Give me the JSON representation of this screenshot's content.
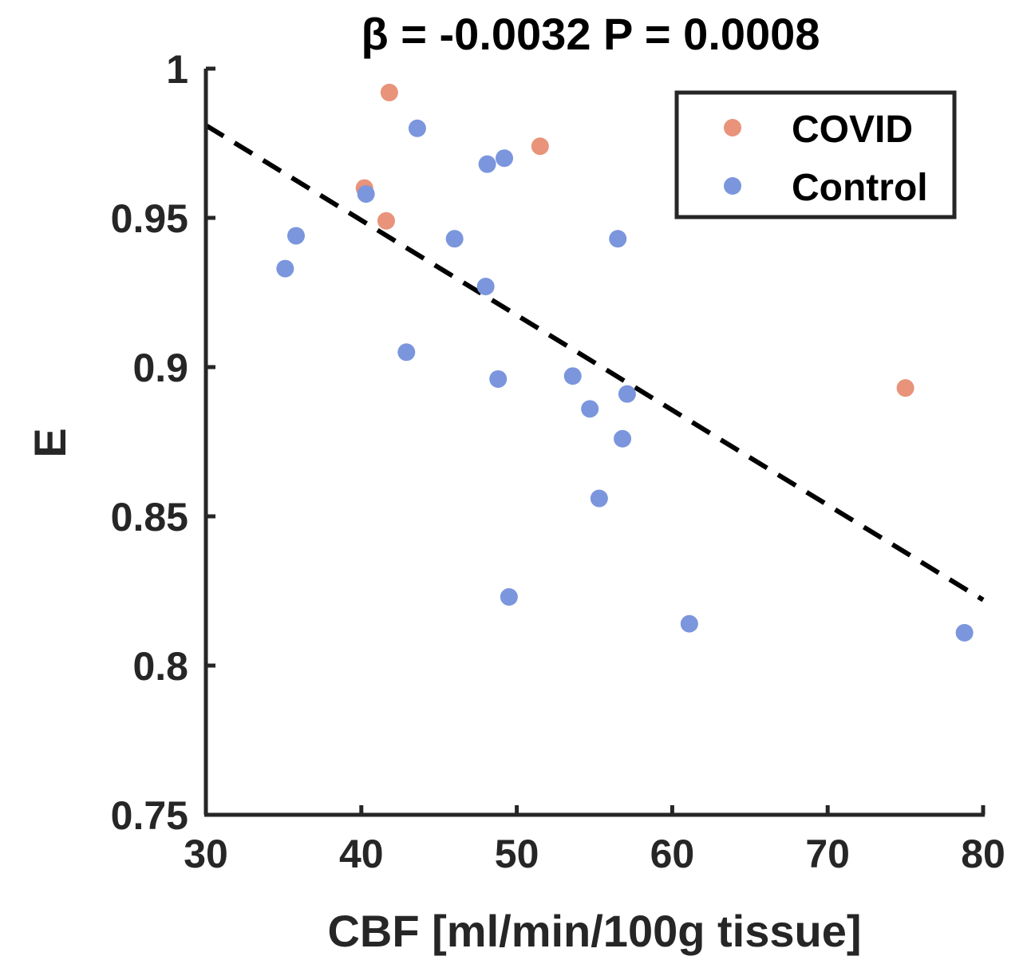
{
  "chart_data": {
    "type": "scatter",
    "title": "β = -0.0032  P = 0.0008",
    "xlabel": "CBF [ml/min/100g tissue]",
    "ylabel": "E",
    "xlim": [
      30,
      80
    ],
    "ylim": [
      0.75,
      1
    ],
    "xticks": [
      "30",
      "40",
      "50",
      "60",
      "70",
      "80"
    ],
    "yticks": [
      "0.75",
      "0.8",
      "0.85",
      "0.9",
      "0.95",
      "1"
    ],
    "legend_position": "top-right",
    "series": [
      {
        "name": "COVID",
        "color": "#E8937A",
        "points": [
          {
            "x": 41.8,
            "y": 0.992
          },
          {
            "x": 51.5,
            "y": 0.974
          },
          {
            "x": 40.2,
            "y": 0.96
          },
          {
            "x": 41.6,
            "y": 0.949
          },
          {
            "x": 75.0,
            "y": 0.893
          }
        ]
      },
      {
        "name": "Control",
        "color": "#7B96DD",
        "points": [
          {
            "x": 43.6,
            "y": 0.98
          },
          {
            "x": 48.1,
            "y": 0.968
          },
          {
            "x": 49.2,
            "y": 0.97
          },
          {
            "x": 40.3,
            "y": 0.958
          },
          {
            "x": 35.8,
            "y": 0.944
          },
          {
            "x": 35.1,
            "y": 0.933
          },
          {
            "x": 46.0,
            "y": 0.943
          },
          {
            "x": 56.5,
            "y": 0.943
          },
          {
            "x": 48.0,
            "y": 0.927
          },
          {
            "x": 42.9,
            "y": 0.905
          },
          {
            "x": 48.8,
            "y": 0.896
          },
          {
            "x": 53.6,
            "y": 0.897
          },
          {
            "x": 57.1,
            "y": 0.891
          },
          {
            "x": 54.7,
            "y": 0.886
          },
          {
            "x": 56.8,
            "y": 0.876
          },
          {
            "x": 55.3,
            "y": 0.856
          },
          {
            "x": 49.5,
            "y": 0.823
          },
          {
            "x": 61.1,
            "y": 0.814
          },
          {
            "x": 78.8,
            "y": 0.811
          }
        ]
      }
    ],
    "fit_line": {
      "style": "dashed",
      "color": "#000000",
      "x": [
        30,
        80
      ],
      "y": [
        0.981,
        0.822
      ]
    }
  }
}
